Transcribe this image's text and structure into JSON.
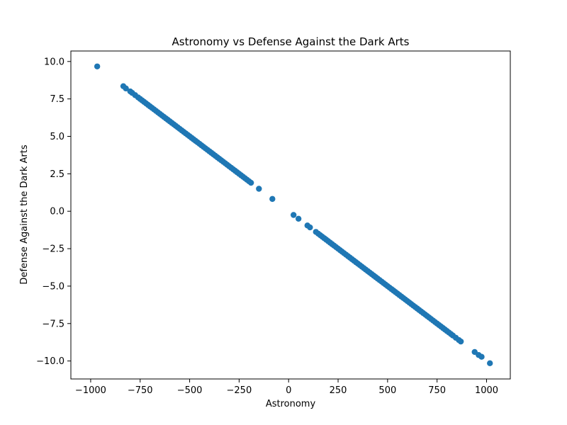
{
  "chart_data": {
    "type": "scatter",
    "title": "Astronomy vs Defense Against the Dark Arts",
    "xlabel": "Astronomy",
    "ylabel": "Defense Against the Dark Arts",
    "xlim": [
      -1100,
      1120
    ],
    "ylim": [
      -11.2,
      10.7
    ],
    "xticks": [
      -1000,
      -750,
      -500,
      -250,
      0,
      250,
      500,
      750,
      1000
    ],
    "xtick_labels": [
      "−1000",
      "−750",
      "−500",
      "−250",
      "0",
      "250",
      "500",
      "750",
      "1000"
    ],
    "yticks": [
      10.0,
      7.5,
      5.0,
      2.5,
      0.0,
      -2.5,
      -5.0,
      -7.5,
      -10.0
    ],
    "ytick_labels": [
      "10.0",
      "7.5",
      "5.0",
      "2.5",
      "0.0",
      "−2.5",
      "−5.0",
      "−7.5",
      "−10.0"
    ],
    "grid": false,
    "marker_color": "#1f77b4",
    "relationship": {
      "slope": -0.01,
      "intercept": 0.0
    },
    "x": [
      -967,
      -835,
      -822,
      -800,
      -790,
      -775,
      -760,
      -750,
      -740,
      -730,
      -720,
      -710,
      -700,
      -690,
      -680,
      -670,
      -660,
      -650,
      -640,
      -630,
      -620,
      -610,
      -600,
      -590,
      -580,
      -570,
      -560,
      -550,
      -540,
      -530,
      -520,
      -510,
      -500,
      -490,
      -480,
      -470,
      -460,
      -450,
      -440,
      -430,
      -420,
      -410,
      -400,
      -390,
      -380,
      -370,
      -360,
      -350,
      -340,
      -330,
      -320,
      -310,
      -300,
      -290,
      -280,
      -270,
      -260,
      -250,
      -240,
      -230,
      -220,
      -210,
      -200,
      -190,
      -150,
      -82,
      25,
      50,
      95,
      108,
      138,
      150,
      160,
      170,
      180,
      190,
      200,
      210,
      220,
      230,
      240,
      250,
      260,
      270,
      280,
      290,
      300,
      310,
      320,
      330,
      340,
      350,
      360,
      370,
      380,
      390,
      400,
      410,
      420,
      430,
      440,
      450,
      460,
      470,
      480,
      490,
      500,
      510,
      520,
      530,
      540,
      550,
      560,
      570,
      580,
      590,
      600,
      610,
      620,
      630,
      640,
      650,
      660,
      670,
      680,
      690,
      700,
      710,
      720,
      730,
      740,
      750,
      760,
      770,
      780,
      790,
      800,
      810,
      820,
      830,
      845,
      860,
      870,
      940,
      960,
      975,
      1017
    ],
    "y": [
      9.67,
      8.35,
      8.2,
      8.0,
      7.9,
      7.75,
      7.6,
      7.5,
      7.4,
      7.3,
      7.2,
      7.1,
      7.0,
      6.9,
      6.8,
      6.7,
      6.6,
      6.5,
      6.4,
      6.3,
      6.2,
      6.1,
      6.0,
      5.9,
      5.8,
      5.7,
      5.6,
      5.5,
      5.4,
      5.3,
      5.2,
      5.1,
      5.0,
      4.9,
      4.8,
      4.7,
      4.6,
      4.5,
      4.4,
      4.3,
      4.2,
      4.1,
      4.0,
      3.9,
      3.8,
      3.7,
      3.6,
      3.5,
      3.4,
      3.3,
      3.2,
      3.1,
      3.0,
      2.9,
      2.8,
      2.7,
      2.6,
      2.5,
      2.4,
      2.3,
      2.2,
      2.1,
      2.0,
      1.9,
      1.5,
      0.82,
      -0.25,
      -0.5,
      -0.95,
      -1.08,
      -1.38,
      -1.5,
      -1.6,
      -1.7,
      -1.8,
      -1.9,
      -2.0,
      -2.1,
      -2.2,
      -2.3,
      -2.4,
      -2.5,
      -2.6,
      -2.7,
      -2.8,
      -2.9,
      -3.0,
      -3.1,
      -3.2,
      -3.3,
      -3.4,
      -3.5,
      -3.6,
      -3.7,
      -3.8,
      -3.9,
      -4.0,
      -4.1,
      -4.2,
      -4.3,
      -4.4,
      -4.5,
      -4.6,
      -4.7,
      -4.8,
      -4.9,
      -5.0,
      -5.1,
      -5.2,
      -5.3,
      -5.4,
      -5.5,
      -5.6,
      -5.7,
      -5.8,
      -5.9,
      -6.0,
      -6.1,
      -6.2,
      -6.3,
      -6.4,
      -6.5,
      -6.6,
      -6.7,
      -6.8,
      -6.9,
      -7.0,
      -7.1,
      -7.2,
      -7.3,
      -7.4,
      -7.5,
      -7.6,
      -7.7,
      -7.8,
      -7.9,
      -8.0,
      -8.1,
      -8.2,
      -8.3,
      -8.45,
      -8.6,
      -8.7,
      -9.4,
      -9.6,
      -9.72,
      -10.15
    ]
  }
}
